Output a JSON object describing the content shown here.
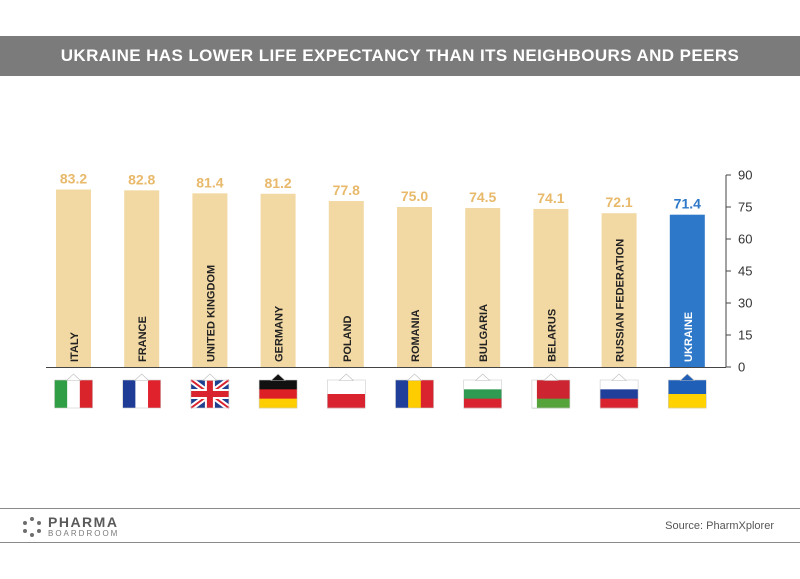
{
  "header": {
    "title": "UKRAINE HAS LOWER LIFE EXPECTANCY THAN ITS NEIGHBOURS AND PEERS"
  },
  "chart_data": {
    "type": "bar",
    "categories": [
      "ITALY",
      "FRANCE",
      "UNITED KINGDOM",
      "GERMANY",
      "POLAND",
      "ROMANIA",
      "BULGARIA",
      "BELARUS",
      "RUSSIAN  FEDERATION",
      "UKRAINE"
    ],
    "values": [
      83.2,
      82.8,
      81.4,
      81.2,
      77.8,
      75.0,
      74.5,
      74.1,
      72.1,
      71.4
    ],
    "value_labels": [
      "83.2",
      "82.8",
      "81.4",
      "81.2",
      "77.8",
      "75.0",
      "74.5",
      "74.1",
      "72.1",
      "71.4"
    ],
    "ylim": [
      0,
      90
    ],
    "yticks": [
      0,
      15,
      30,
      45,
      60,
      75,
      90
    ],
    "y_axis_side": "right",
    "highlight_category": "UKRAINE",
    "colors": {
      "bar": "#f2d8a3",
      "highlight": "#2d78c8",
      "value_label": "#e8b96a",
      "highlight_label": "#2d78c8",
      "axis": "#444444"
    },
    "flags": [
      "italy-flag-icon",
      "france-flag-icon",
      "uk-flag-icon",
      "germany-flag-icon",
      "poland-flag-icon",
      "romania-flag-icon",
      "bulgaria-flag-icon",
      "belarus-flag-icon",
      "russia-flag-icon",
      "ukraine-flag-icon"
    ]
  },
  "footer": {
    "brand_line1": "PHARMA",
    "brand_line2": "BOARDROOM",
    "source": "Source: PharmXplorer"
  }
}
